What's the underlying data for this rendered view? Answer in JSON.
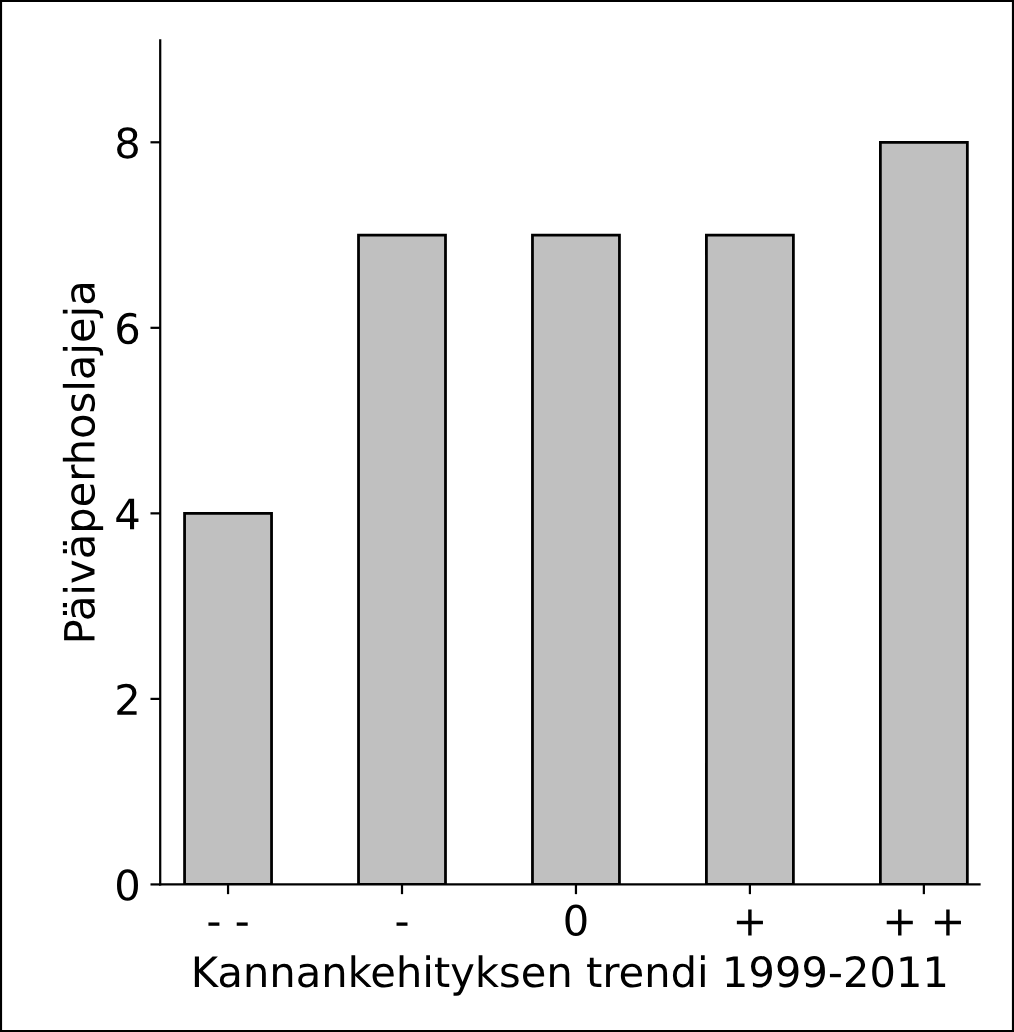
{
  "chart_data": {
    "type": "bar",
    "xlabel": "Kannankehityksen trendi 1999-2011",
    "ylabel": "Päiväperhoslajeja",
    "categories": [
      "- -",
      "-",
      "0",
      "+",
      "+ +"
    ],
    "values": [
      4,
      7,
      7,
      7,
      8
    ],
    "color": "#c0c0c0",
    "ylim": [
      0,
      9.1
    ],
    "yticks": [
      0,
      2,
      4,
      6,
      8
    ],
    "grid": false,
    "legend": false
  }
}
